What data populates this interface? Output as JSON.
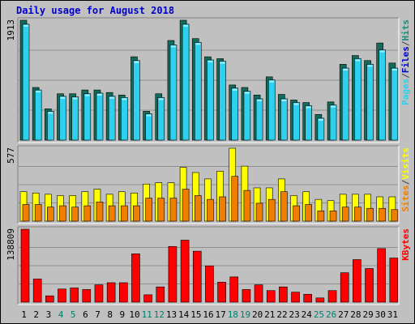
{
  "title": "Daily usage for August 2018",
  "colors": {
    "pages": "#066a5a",
    "files": "#2ed0ee",
    "hits": "#1a8a7a",
    "visits": "#f07e00",
    "sites": "#ffff00",
    "kbytes": "#ff0000",
    "weekend_label": "#00806a",
    "weekday_label": "#000000"
  },
  "panels": {
    "hits": {
      "max_label": "1913",
      "right_label": [
        "Pages",
        "/",
        "Files",
        "/",
        "Hits"
      ],
      "right_colors": [
        "#2ed0ee",
        "#444444",
        "#0000cc",
        "#444444",
        "#1a8a7a"
      ]
    },
    "visits": {
      "max_label": "577",
      "right_label": [
        "Sites",
        "/",
        "Visits"
      ],
      "right_colors": [
        "#f07e00",
        "#444444",
        "#ffff00"
      ]
    },
    "kbytes": {
      "max_label": "138809",
      "right_label": [
        "KBytes"
      ],
      "right_colors": [
        "#ff0000"
      ]
    }
  },
  "chart_data": {
    "type": "bar",
    "title": "Daily usage for August 2018",
    "x": [
      1,
      2,
      3,
      4,
      5,
      6,
      7,
      8,
      9,
      10,
      11,
      12,
      13,
      14,
      15,
      16,
      17,
      18,
      19,
      20,
      21,
      22,
      23,
      24,
      25,
      26,
      27,
      28,
      29,
      30,
      31
    ],
    "weekend_days": [
      4,
      5,
      11,
      12,
      18,
      19,
      25,
      26
    ],
    "series": [
      {
        "name": "Hits",
        "panel": "hits",
        "values": [
          1913,
          840,
          500,
          740,
          740,
          800,
          800,
          760,
          720,
          1330,
          460,
          740,
          1590,
          1913,
          1620,
          1330,
          1300,
          880,
          840,
          720,
          1010,
          730,
          640,
          600,
          410,
          610,
          1210,
          1350,
          1270,
          1550,
          1230
        ]
      },
      {
        "name": "Files",
        "panel": "hits",
        "values": [
          1850,
          800,
          460,
          700,
          690,
          740,
          750,
          700,
          680,
          1270,
          420,
          680,
          1520,
          1850,
          1560,
          1280,
          1260,
          830,
          780,
          660,
          960,
          660,
          600,
          550,
          350,
          560,
          1150,
          1300,
          1210,
          1440,
          1150
        ]
      },
      {
        "name": "Visits",
        "panel": "visits",
        "values": [
          230,
          220,
          210,
          200,
          200,
          230,
          250,
          210,
          230,
          220,
          290,
          300,
          300,
          420,
          380,
          330,
          390,
          570,
          430,
          260,
          260,
          330,
          200,
          230,
          170,
          160,
          210,
          210,
          210,
          190,
          190
        ]
      },
      {
        "name": "Sites",
        "panel": "visits",
        "values": [
          130,
          130,
          110,
          120,
          110,
          120,
          150,
          120,
          120,
          120,
          180,
          180,
          180,
          250,
          200,
          170,
          190,
          350,
          240,
          140,
          170,
          230,
          120,
          130,
          80,
          80,
          110,
          110,
          100,
          100,
          90
        ]
      },
      {
        "name": "KBytes",
        "panel": "kbytes",
        "values": [
          138809,
          44000,
          12000,
          25000,
          27000,
          24000,
          33000,
          37000,
          37000,
          92000,
          14000,
          29000,
          106000,
          118000,
          97000,
          69000,
          38000,
          48000,
          24000,
          33000,
          22000,
          29000,
          19000,
          15000,
          8000,
          22000,
          56000,
          81000,
          64000,
          102000,
          84000
        ]
      }
    ]
  }
}
